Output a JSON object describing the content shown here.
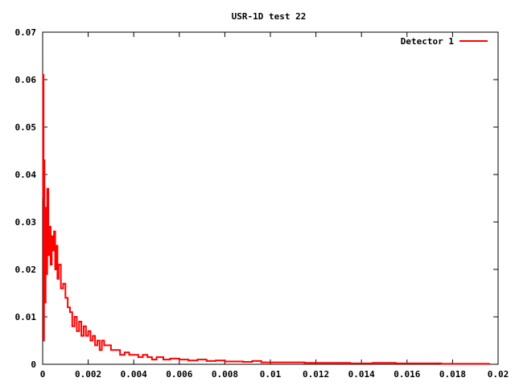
{
  "chart_data": {
    "type": "line",
    "title": "USR-1D test 22",
    "xlabel": "",
    "ylabel": "",
    "xlim": [
      0,
      0.02
    ],
    "ylim": [
      0,
      0.07
    ],
    "x_ticks": [
      "0",
      "0.002",
      "0.004",
      "0.006",
      "0.008",
      "0.01",
      "0.012",
      "0.014",
      "0.016",
      "0.018",
      "0.02"
    ],
    "y_ticks": [
      "0",
      "0.01",
      "0.02",
      "0.03",
      "0.04",
      "0.05",
      "0.06",
      "0.07"
    ],
    "grid": false,
    "legend_position": "top-right",
    "series": [
      {
        "name": "Detector 1",
        "color": "#ff0000",
        "step": true,
        "x": [
          0,
          2e-05,
          4e-05,
          6e-05,
          8e-05,
          0.0001,
          0.00013,
          0.00016,
          0.0002,
          0.00025,
          0.0003,
          0.00035,
          0.0004,
          0.00045,
          0.0005,
          0.00055,
          0.0006,
          0.00065,
          0.0007,
          0.0008,
          0.0009,
          0.001,
          0.0011,
          0.0012,
          0.0013,
          0.0014,
          0.0015,
          0.0016,
          0.0017,
          0.0018,
          0.0019,
          0.002,
          0.0021,
          0.0022,
          0.0023,
          0.0024,
          0.0025,
          0.0026,
          0.0027,
          0.0028,
          0.003,
          0.0032,
          0.0034,
          0.0036,
          0.0038,
          0.004,
          0.0042,
          0.0044,
          0.0046,
          0.0048,
          0.005,
          0.0053,
          0.0056,
          0.006,
          0.0064,
          0.0068,
          0.0072,
          0.0076,
          0.008,
          0.0084,
          0.0088,
          0.0092,
          0.0096,
          0.0105,
          0.0115,
          0.0125,
          0.0135,
          0.0145,
          0.0155,
          0.0165,
          0.0175,
          0.0185,
          0.0196
        ],
        "y": [
          0.035,
          0.061,
          0.005,
          0.043,
          0.022,
          0.013,
          0.033,
          0.019,
          0.037,
          0.023,
          0.029,
          0.021,
          0.027,
          0.024,
          0.028,
          0.02,
          0.025,
          0.018,
          0.021,
          0.016,
          0.017,
          0.014,
          0.012,
          0.011,
          0.008,
          0.01,
          0.007,
          0.009,
          0.006,
          0.008,
          0.006,
          0.007,
          0.005,
          0.006,
          0.004,
          0.005,
          0.003,
          0.005,
          0.004,
          0.004,
          0.003,
          0.003,
          0.002,
          0.0025,
          0.002,
          0.002,
          0.0015,
          0.002,
          0.0015,
          0.001,
          0.0015,
          0.001,
          0.0012,
          0.001,
          0.0008,
          0.001,
          0.0007,
          0.0008,
          0.0006,
          0.0006,
          0.0005,
          0.0007,
          0.0004,
          0.0004,
          0.0003,
          0.0003,
          0.0002,
          0.0003,
          0.0002,
          0.0002,
          0.0001,
          0.0001,
          0
        ]
      }
    ]
  }
}
